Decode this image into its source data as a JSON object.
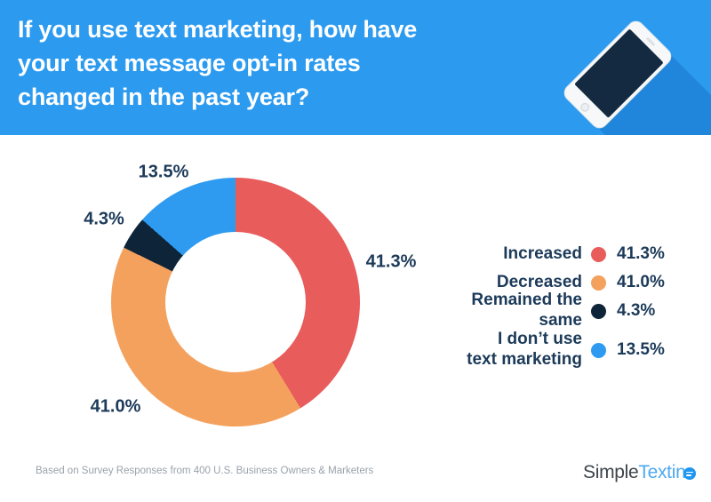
{
  "header": {
    "title_lines": [
      "If you use text marketing, how have",
      "your text message opt-in rates",
      "changed in the past year?"
    ],
    "bg_color": "#2B9AEF"
  },
  "chart_data": {
    "type": "pie",
    "variant": "donut",
    "title": "If you use text marketing, how have your text message opt-in rates changed in the past year?",
    "labels": [
      "Increased",
      "Decreased",
      "Remained the same",
      "I don’t use\ntext marketing"
    ],
    "values": [
      41.3,
      41.0,
      4.3,
      13.5
    ],
    "display_pcts": [
      "41.3%",
      "41.0%",
      "4.3%",
      "13.5%"
    ],
    "colors": [
      "#E85C5C",
      "#F4A15E",
      "#0E2539",
      "#2E9BF0"
    ],
    "legend_position": "right",
    "start_angle_deg": 0,
    "direction": "clockwise",
    "donut_hole_ratio": 0.56
  },
  "footer": {
    "source_note": "Based on Survey Responses from 400 U.S. Business Owners & Marketers",
    "brand": {
      "name": "SimpleTexting",
      "part1": "Simple",
      "part2": "Textin",
      "bubble_icon": "chat-bubble-icon",
      "bubble_color": "#1F97F0"
    }
  },
  "colors": {
    "header_bg": "#2B9AEF",
    "phone_shadow": "#2086DB",
    "phone_screen": "#132A40",
    "label_navy": "#1C3A59",
    "footer_gray": "#99A2AA",
    "logo_dark": "#3C444B",
    "logo_blue": "#4FA8EE"
  }
}
